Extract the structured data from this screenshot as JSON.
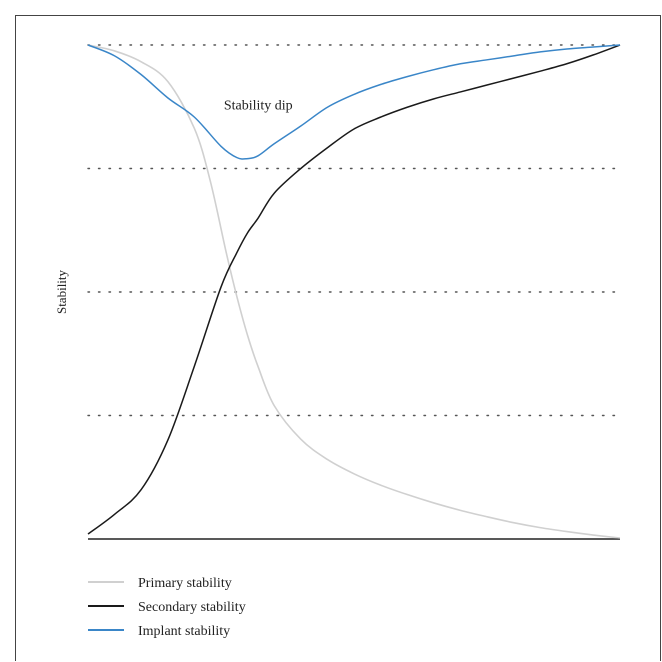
{
  "chart_data": {
    "type": "line",
    "title": "",
    "xlabel": "",
    "ylabel": "Stability",
    "xlim": [
      0,
      100
    ],
    "ylim": [
      0,
      100
    ],
    "grid": "horizontal dotted",
    "legend_position": "bottom-left",
    "annotations": [
      {
        "text": "Stability dip",
        "x": 32,
        "y": 88
      }
    ],
    "series": [
      {
        "name": "Primary stability",
        "color": "#d0d0d0",
        "x": [
          0,
          5,
          10,
          15,
          20,
          23,
          26,
          28,
          30,
          32,
          35,
          40,
          45,
          50,
          55,
          60,
          65,
          70,
          75,
          80,
          85,
          90,
          95,
          100
        ],
        "y": [
          100,
          98.8,
          96.6,
          92.6,
          83.1,
          72.4,
          57.9,
          49,
          41.2,
          34.8,
          27,
          20.2,
          16.1,
          13.2,
          10.9,
          9,
          7.3,
          5.8,
          4.5,
          3.3,
          2.3,
          1.5,
          0.8,
          0.2
        ]
      },
      {
        "name": "Secondary stability",
        "color": "#1a1a1a",
        "x": [
          0,
          5,
          10,
          15,
          20,
          25,
          28,
          30,
          32,
          35,
          40,
          45,
          50,
          55,
          60,
          65,
          70,
          75,
          80,
          85,
          90,
          95,
          100
        ],
        "y": [
          1,
          5,
          10,
          20,
          35,
          51,
          58,
          62,
          65,
          70,
          75,
          79.2,
          83,
          85.4,
          87.4,
          89.1,
          90.5,
          91.9,
          93.3,
          94.7,
          96.2,
          98,
          100
        ]
      },
      {
        "name": "Implant stability",
        "color": "#3a86c8",
        "x": [
          0,
          5,
          10,
          15,
          20,
          25,
          28,
          30,
          32,
          35,
          40,
          45,
          50,
          55,
          60,
          65,
          70,
          75,
          80,
          85,
          90,
          95,
          100
        ],
        "y": [
          100,
          97.8,
          94,
          89.3,
          85.4,
          79.5,
          77.2,
          77,
          77.6,
          80,
          83.6,
          87.4,
          90,
          92,
          93.6,
          95,
          96.2,
          97,
          97.8,
          98.6,
          99.2,
          99.6,
          100
        ]
      }
    ],
    "gridlines_y": [
      25,
      50,
      75,
      100
    ]
  }
}
